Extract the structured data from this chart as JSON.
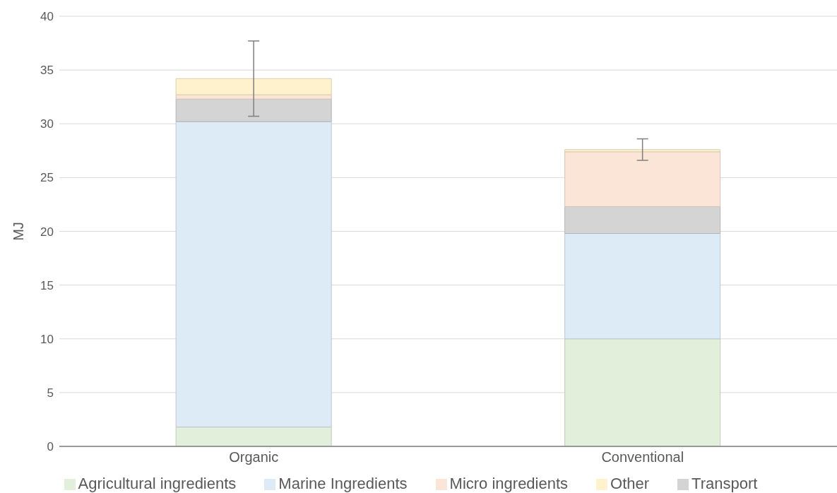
{
  "chart_data": {
    "type": "bar",
    "ylabel": "MJ",
    "categories": [
      "Organic",
      "Conventional"
    ],
    "stacked": true,
    "series": [
      {
        "name": "Agricultural ingredients",
        "color": "#e2efda",
        "values": [
          1.8,
          10.0
        ]
      },
      {
        "name": "Marine Ingredients",
        "color": "#ddebf7",
        "values": [
          28.4,
          9.8
        ]
      },
      {
        "name": "Transport",
        "color": "#d4d4d4",
        "values": [
          2.1,
          2.5
        ]
      },
      {
        "name": "Micro ingredients",
        "color": "#fbe5d6",
        "values": [
          0.4,
          5.1
        ]
      },
      {
        "name": "Other",
        "color": "#fff2cc",
        "values": [
          1.5,
          0.2
        ],
        "errors": [
          3.5,
          1.0
        ]
      }
    ],
    "ylim": [
      0,
      40
    ],
    "yticks": [
      0,
      5,
      10,
      15,
      20,
      25,
      30,
      35,
      40
    ],
    "grid": "y",
    "legend": "bottom"
  }
}
